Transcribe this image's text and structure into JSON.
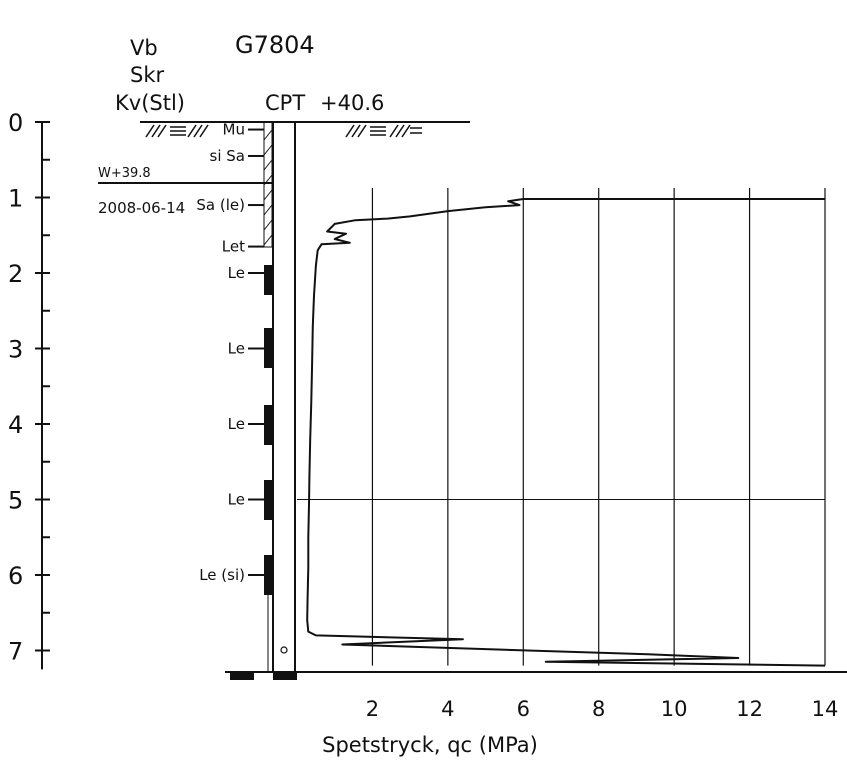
{
  "header": {
    "method_lines": [
      "Vb",
      "Skr",
      "Kv(Stl)"
    ],
    "borehole_id": "G7804",
    "test_type": "CPT",
    "ground_level": "+40.6"
  },
  "groundwater": {
    "label": "W+39.8",
    "date": "2008-06-14",
    "depth": 0.8
  },
  "soil_layers": [
    {
      "label": "Mu",
      "depth": 0.1
    },
    {
      "label": "si Sa",
      "depth": 0.45
    },
    {
      "label": "Sa (le)",
      "depth": 1.1
    },
    {
      "label": "Let",
      "depth": 1.65
    },
    {
      "label": "Le",
      "depth": 2.0
    },
    {
      "label": "Le",
      "depth": 3.0
    },
    {
      "label": "Le",
      "depth": 4.0
    },
    {
      "label": "Le",
      "depth": 5.0
    },
    {
      "label": "Le (si)",
      "depth": 6.0
    }
  ],
  "chart_data": {
    "type": "line",
    "xlabel": "Spetstryck, qc (MPa)",
    "ylabel": "",
    "xlim": [
      0,
      14
    ],
    "ylim": [
      0,
      7.2
    ],
    "x_ticks": [
      2,
      4,
      6,
      8,
      10,
      12,
      14
    ],
    "y_ticks": [
      0,
      1,
      2,
      3,
      4,
      5,
      6,
      7
    ],
    "gridlines_x": [
      2,
      4,
      6,
      8,
      10,
      12,
      14
    ],
    "gridline_y": 5,
    "series": [
      {
        "values_x": [
          14.0,
          6.0,
          5.6,
          5.9,
          5.0,
          4.0,
          3.0,
          2.4,
          1.55,
          1.0,
          0.8,
          1.3,
          1.0,
          1.4,
          0.65,
          0.55,
          0.5,
          0.45,
          0.42,
          0.4,
          0.38,
          0.35,
          0.33,
          0.32,
          0.3,
          0.3,
          0.28,
          0.27,
          0.3,
          0.5,
          4.4,
          1.2,
          9.3,
          11.7,
          6.6,
          14.0
        ],
        "values_y": [
          1.02,
          1.02,
          1.05,
          1.1,
          1.13,
          1.18,
          1.25,
          1.28,
          1.3,
          1.35,
          1.45,
          1.48,
          1.55,
          1.6,
          1.62,
          1.7,
          1.9,
          2.3,
          2.7,
          3.2,
          3.7,
          4.2,
          4.7,
          5.0,
          5.5,
          5.9,
          6.3,
          6.6,
          6.75,
          6.8,
          6.85,
          6.92,
          7.05,
          7.1,
          7.15,
          7.2
        ]
      }
    ]
  }
}
